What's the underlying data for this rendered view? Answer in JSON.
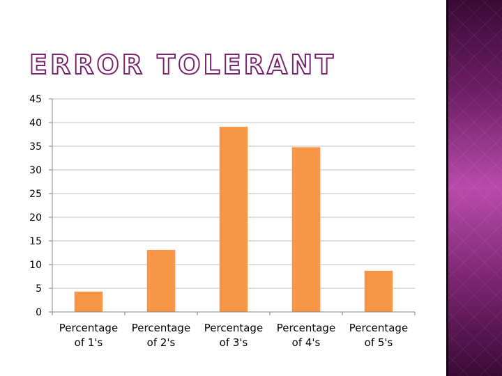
{
  "slide": {
    "title": "ERROR TOLERANT"
  },
  "colors": {
    "bar": "#F79646",
    "gridline": "#BFBFBF",
    "axis": "#868686",
    "title_stroke": "#7A2470",
    "side_panel": "#B84BAB"
  },
  "chart_data": {
    "type": "bar",
    "categories": [
      [
        "Percentage",
        "of 1's"
      ],
      [
        "Percentage",
        "of 2's"
      ],
      [
        "Percentage",
        "of 3's"
      ],
      [
        "Percentage",
        "of 4's"
      ],
      [
        "Percentage",
        "of 5's"
      ]
    ],
    "values": [
      4.3,
      13.1,
      39.1,
      34.8,
      8.7
    ],
    "ylim": [
      0,
      45
    ],
    "yticks": [
      0,
      5,
      10,
      15,
      20,
      25,
      30,
      35,
      40,
      45
    ],
    "grid": true,
    "legend": "none"
  }
}
